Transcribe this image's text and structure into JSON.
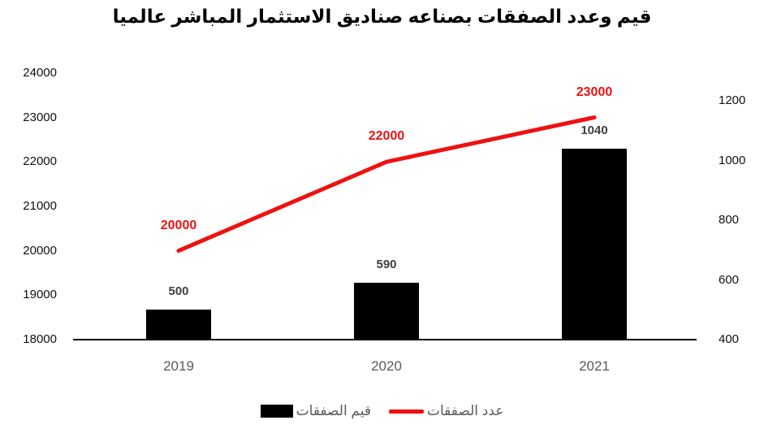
{
  "title": "قيم وعدد الصفقات بصناعه صناديق الاستثمار المباشر عالميا",
  "legend": {
    "items": [
      {
        "label": "قيم الصفقات",
        "marker": "bar-swatch",
        "color": "#000000"
      },
      {
        "label": "عدد الصفقات",
        "marker": "line-swatch",
        "color": "#ee1111"
      }
    ],
    "position": "bottom"
  },
  "colors": {
    "bar_series": "#000000",
    "line_series": "#ee1111",
    "bar_data_label": "#404040",
    "line_data_label": "#ee1111",
    "axis_tick_label": "#111111",
    "category_label": "#595959",
    "legend_label": "#595959",
    "axis_line": "#000000",
    "background": "#ffffff"
  },
  "chart_data": {
    "type": "combo",
    "title": "قيم وعدد الصفقات بصناعه صناديق الاستثمار المباشر عالميا",
    "categories": [
      "2019",
      "2020",
      "2021"
    ],
    "series": [
      {
        "name": "قيم الصفقات",
        "type": "bar",
        "axis": "right",
        "color": "#000000",
        "values": [
          500,
          590,
          1040
        ],
        "data_labels": [
          "500",
          "590",
          "1040"
        ]
      },
      {
        "name": "عدد الصفقات",
        "type": "line",
        "axis": "left",
        "color": "#ee1111",
        "values": [
          20000,
          22000,
          23000
        ],
        "data_labels": [
          "20000",
          "22000",
          "23000"
        ]
      }
    ],
    "left_axis": {
      "min": 18000,
      "max": 24000,
      "step": 1000,
      "tick_labels": [
        "18000",
        "19000",
        "20000",
        "21000",
        "22000",
        "23000",
        "24000"
      ]
    },
    "right_axis": {
      "min": 400,
      "max": 1200,
      "step": 200,
      "tick_labels": [
        "400",
        "600",
        "800",
        "1000",
        "1200"
      ]
    },
    "grid": false,
    "legend_position": "bottom"
  }
}
